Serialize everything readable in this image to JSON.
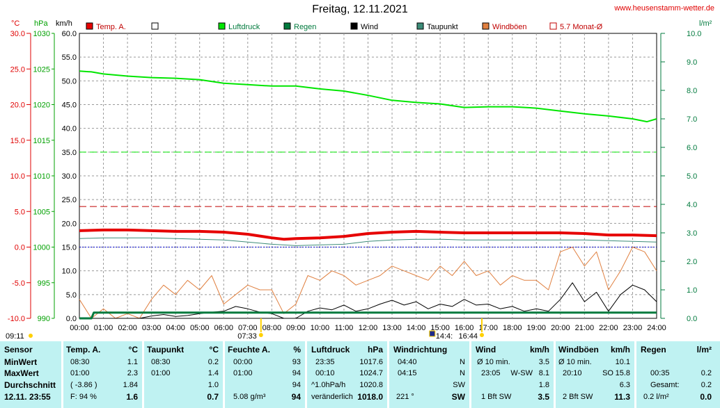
{
  "header": {
    "title": "Freitag, 12.11.2021",
    "site": "www.heusenstamm-wetter.de"
  },
  "axes": {
    "temp_unit": "°C",
    "pressure_unit": "hPa",
    "wind_unit": "km/h",
    "rain_unit": "l/m²",
    "temp_ticks": [
      "30.0",
      "25.0",
      "20.0",
      "15.0",
      "10.0",
      "5.0",
      "0.0",
      "-5.0",
      "-10.0"
    ],
    "pressure_ticks": [
      "1030",
      "1025",
      "1020",
      "1015",
      "1010",
      "1005",
      "1000",
      "995",
      "990"
    ],
    "wind_ticks": [
      "60.0",
      "55.0",
      "50.0",
      "45.0",
      "40.0",
      "35.0",
      "30.0",
      "25.0",
      "20.0",
      "15.0",
      "10.0",
      "5.0",
      "0.0"
    ],
    "rain_ticks": [
      "10.0",
      "9.0",
      "8.0",
      "7.0",
      "6.0",
      "5.0",
      "4.0",
      "3.0",
      "2.0",
      "1.0",
      "0.0"
    ],
    "time_ticks": [
      "00:00",
      "01:00",
      "02:00",
      "03:00",
      "04:00",
      "05:00",
      "06:00",
      "07:00",
      "08:00",
      "09:00",
      "10:00",
      "11:00",
      "12:00",
      "13:00",
      "14:00",
      "15:00",
      "16:00",
      "17:00",
      "18:00",
      "19:00",
      "20:00",
      "21:00",
      "22:00",
      "23:00",
      "24:00"
    ]
  },
  "markers": {
    "sunrise": "07:33",
    "sunset": "16:44",
    "moonrise": "09:11",
    "moonset": "14:4:"
  },
  "legend": [
    {
      "label": "Temp. A.",
      "color": "#e60000"
    },
    {
      "label": "",
      "color": "#ffffff"
    },
    {
      "label": "Luftdruck",
      "color": "#00e600"
    },
    {
      "label": "Regen",
      "color": "#007a3d"
    },
    {
      "label": "Wind",
      "color": "#000000"
    },
    {
      "label": "Taupunkt",
      "color": "#3c8c78"
    },
    {
      "label": "Windböen",
      "color": "#e08040"
    },
    {
      "label": "5.7 Monat-Ø",
      "color": "#c00000"
    }
  ],
  "chart_data": {
    "type": "line",
    "title": "Freitag, 12.11.2021",
    "x_range": [
      "00:00",
      "24:00"
    ],
    "series": [
      {
        "name": "Temp. A.",
        "axis": "temp",
        "color": "#e60000",
        "x": [
          0,
          1,
          2,
          3,
          4,
          5,
          6,
          7,
          8,
          8.5,
          9,
          10,
          11,
          12,
          13,
          14,
          15,
          16,
          17,
          18,
          19,
          20,
          21,
          22,
          23,
          24
        ],
        "values": [
          2.3,
          2.4,
          2.4,
          2.3,
          2.2,
          2.2,
          2.1,
          1.8,
          1.3,
          1.1,
          1.2,
          1.3,
          1.5,
          1.9,
          2.1,
          2.2,
          2.1,
          2.0,
          2.0,
          2.0,
          2.0,
          2.0,
          1.9,
          1.7,
          1.7,
          1.6
        ]
      },
      {
        "name": "Taupunkt",
        "axis": "temp",
        "color": "#3c8c78",
        "x": [
          0,
          1,
          2,
          3,
          4,
          5,
          6,
          7,
          8,
          9,
          10,
          11,
          12,
          13,
          14,
          15,
          16,
          17,
          18,
          19,
          20,
          21,
          22,
          23,
          24
        ],
        "values": [
          1.2,
          1.3,
          1.3,
          1.3,
          1.2,
          1.1,
          1.0,
          0.7,
          0.4,
          0.2,
          0.3,
          0.4,
          0.8,
          1.0,
          1.1,
          1.1,
          1.0,
          1.0,
          1.0,
          1.0,
          1.0,
          1.0,
          0.9,
          0.8,
          0.7
        ]
      },
      {
        "name": "Luftdruck",
        "axis": "pressure",
        "color": "#00e600",
        "x": [
          0,
          0.5,
          1,
          2,
          3,
          4,
          5,
          6,
          7,
          8,
          9,
          10,
          11,
          12,
          13,
          14,
          15,
          16,
          17,
          18,
          19,
          20,
          21,
          22,
          23,
          23.6,
          24
        ],
        "values": [
          1024.7,
          1024.6,
          1024.3,
          1024.0,
          1023.8,
          1023.7,
          1023.5,
          1023.0,
          1022.8,
          1022.6,
          1022.6,
          1022.2,
          1021.9,
          1021.3,
          1020.6,
          1020.3,
          1020.1,
          1019.6,
          1019.7,
          1019.7,
          1019.5,
          1019.1,
          1018.7,
          1018.4,
          1018.0,
          1017.6,
          1018.0
        ]
      },
      {
        "name": "Wind",
        "axis": "wind",
        "color": "#000000",
        "x": [
          0,
          0.5,
          1,
          1.5,
          2,
          2.5,
          3,
          3.5,
          4,
          4.5,
          5,
          5.5,
          6,
          6.5,
          7,
          7.5,
          8,
          8.5,
          9,
          9.5,
          10,
          10.5,
          11,
          11.5,
          12,
          12.5,
          13,
          13.5,
          14,
          14.5,
          15,
          15.5,
          16,
          16.5,
          17,
          17.5,
          18,
          18.5,
          19,
          19.5,
          20,
          20.5,
          21,
          21.5,
          22,
          22.5,
          23,
          23.5,
          24
        ],
        "values": [
          0,
          0,
          0,
          0,
          0,
          0,
          0.5,
          0.8,
          0.4,
          0.6,
          1.0,
          1.3,
          1.5,
          2.5,
          2.0,
          1.3,
          1.0,
          0,
          0,
          1.5,
          2.2,
          1.8,
          2.8,
          1.5,
          2.0,
          3.0,
          3.8,
          2.8,
          3.5,
          2.0,
          3.0,
          2.5,
          4.0,
          2.8,
          3.0,
          2.0,
          2.5,
          1.5,
          2.0,
          1.5,
          4.0,
          7.5,
          3.5,
          5.5,
          1.5,
          5.0,
          7.0,
          6.0,
          3.5
        ]
      },
      {
        "name": "Windböen",
        "axis": "wind",
        "color": "#e08040",
        "x": [
          0,
          0.5,
          1,
          1.5,
          2,
          2.5,
          3,
          3.5,
          4,
          4.5,
          5,
          5.5,
          6,
          6.5,
          7,
          7.5,
          8,
          8.5,
          9,
          9.5,
          10,
          10.5,
          11,
          11.5,
          12,
          12.5,
          13,
          13.5,
          14,
          14.5,
          15,
          15.5,
          16,
          16.5,
          17,
          17.5,
          18,
          18.5,
          19,
          19.5,
          20,
          20.5,
          21,
          21.5,
          22,
          22.5,
          23,
          23.5,
          24
        ],
        "values": [
          4,
          0,
          2,
          0,
          1,
          0,
          4,
          7,
          5,
          8,
          6,
          9,
          3,
          5,
          7,
          6,
          6,
          1,
          3,
          9,
          8,
          10,
          9,
          7,
          8,
          9,
          11,
          10,
          9,
          8,
          11,
          9,
          12,
          9,
          10,
          7,
          9,
          8,
          8,
          6,
          14,
          15,
          11,
          14,
          6,
          10,
          15,
          14,
          10
        ]
      },
      {
        "name": "Regen",
        "axis": "rain",
        "color": "#007a3d",
        "x": [
          0,
          0.5,
          0.6,
          24
        ],
        "values": [
          0,
          0,
          0.2,
          0.2
        ]
      }
    ],
    "reference_lines": [
      {
        "label": "5.7 Monat-Ø",
        "axis": "temp",
        "value": 5.7,
        "color": "#c00000",
        "style": "dashed"
      },
      {
        "label": "",
        "axis": "wind",
        "value": 35.0,
        "color": "#00e600",
        "style": "dashed"
      },
      {
        "label": "",
        "axis": "temp",
        "value": 0.0,
        "color": "#0000cc",
        "style": "dotted"
      }
    ],
    "temp_range": [
      -10,
      30
    ],
    "pressure_range": [
      990,
      1030
    ],
    "wind_range": [
      0,
      60
    ],
    "rain_range": [
      0,
      10
    ],
    "grid": true
  },
  "table": {
    "sensor": {
      "title": "Sensor",
      "rows": [
        "MinWert",
        "MaxWert",
        "Durchschnitt",
        "12.11. 23:55"
      ]
    },
    "temp": {
      "title": "Temp. A.",
      "unit": "°C",
      "rows": [
        [
          "08:30",
          "1.1"
        ],
        [
          "01:00",
          "2.3"
        ],
        [
          "( -3.86 )",
          "1.84"
        ],
        [
          "F: 94 %",
          "1.6"
        ]
      ]
    },
    "taupunkt": {
      "title": "Taupunkt",
      "unit": "°C",
      "rows": [
        [
          "08:30",
          "0.2"
        ],
        [
          "01:00",
          "1.4"
        ],
        [
          "",
          "1.0"
        ],
        [
          "",
          "0.7"
        ]
      ]
    },
    "feuchte": {
      "title": "Feuchte A.",
      "unit": "%",
      "rows": [
        [
          "00:00",
          "93"
        ],
        [
          "01:00",
          "94"
        ],
        [
          "",
          "94"
        ],
        [
          "5.08 g/m³",
          "94"
        ]
      ]
    },
    "luftdruck": {
      "title": "Luftdruck",
      "unit": "hPa",
      "rows": [
        [
          "23:35",
          "1017.6"
        ],
        [
          "00:10",
          "1024.7"
        ],
        [
          "^1.0hPa/h",
          "1020.8"
        ],
        [
          "veränderlich",
          "1018.0"
        ]
      ]
    },
    "windrichtung": {
      "title": "Windrichtung",
      "rows": [
        [
          "04:40",
          "N"
        ],
        [
          "04:15",
          "N"
        ],
        [
          "",
          "SW"
        ],
        [
          "221 °",
          "SW"
        ]
      ]
    },
    "wind": {
      "title": "Wind",
      "unit": "km/h",
      "rows": [
        [
          "Ø 10 min.",
          "",
          "3.5"
        ],
        [
          "23:05",
          "W-SW",
          "8.1"
        ],
        [
          "",
          "",
          "1.8"
        ],
        [
          "1 Bft SW",
          "",
          "3.5"
        ]
      ]
    },
    "windboeen": {
      "title": "Windböen",
      "unit": "km/h",
      "rows": [
        [
          "Ø 10 min.",
          "",
          "10.1"
        ],
        [
          "20:10",
          "SO",
          "15.8"
        ],
        [
          "",
          "",
          "6.3"
        ],
        [
          "2 Bft SW",
          "",
          "11.3"
        ]
      ]
    },
    "regen": {
      "title": "Regen",
      "unit": "l/m²",
      "rows": [
        [
          "00:35",
          "0.2"
        ],
        [
          "Gesamt:",
          "0.2"
        ],
        [
          "0.2 l/m²",
          "0.0"
        ]
      ]
    }
  }
}
